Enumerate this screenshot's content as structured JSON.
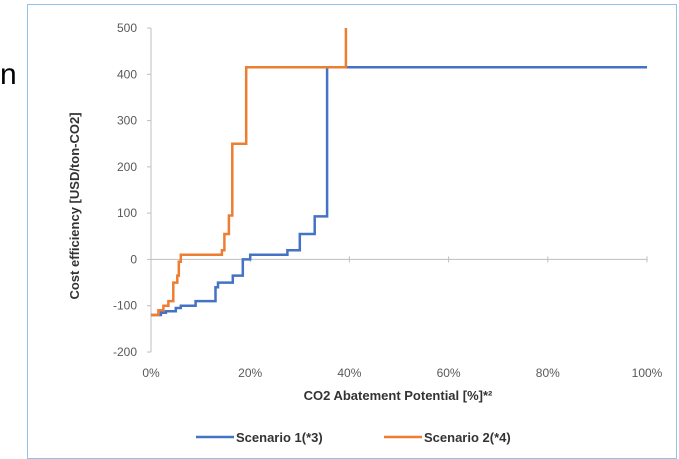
{
  "page": {
    "edge_text": "n"
  },
  "chart_data": {
    "type": "line",
    "xlabel": "CO2 Abatement Potential [%]*²",
    "ylabel": "Cost efficiency [USD/ton-CO2]",
    "xlim": [
      0,
      100
    ],
    "ylim": [
      -200,
      500
    ],
    "x_ticks": [
      0,
      20,
      40,
      60,
      80,
      100
    ],
    "x_tick_labels": [
      "0%",
      "20%",
      "40%",
      "60%",
      "80%",
      "100%"
    ],
    "y_ticks": [
      -200,
      -100,
      0,
      100,
      200,
      300,
      400,
      500
    ],
    "y_tick_labels": [
      "-200",
      "-100",
      "0",
      "100",
      "200",
      "300",
      "400",
      "500"
    ],
    "legend_position": "bottom",
    "series": [
      {
        "name": "Scenario 1(*3)",
        "color": "#4472c4",
        "step": true,
        "x": [
          0,
          2,
          3,
          5,
          6,
          9,
          13,
          13.5,
          15,
          16.5,
          18.5,
          20,
          27.5,
          30,
          33,
          35.5,
          100
        ],
        "y": [
          -120,
          -115,
          -112,
          -105,
          -100,
          -90,
          -60,
          -50,
          -50,
          -35,
          0,
          10,
          20,
          55,
          93,
          415,
          415
        ]
      },
      {
        "name": "Scenario 2(*4)",
        "color": "#ed7d31",
        "step": true,
        "x": [
          0,
          1.5,
          2.5,
          3.5,
          4.5,
          5.3,
          5.6,
          6,
          14.3,
          14.8,
          15.7,
          16.4,
          17.6,
          19.2,
          39,
          39.3
        ],
        "y": [
          -120,
          -110,
          -100,
          -90,
          -50,
          -35,
          -5,
          10,
          20,
          55,
          95,
          250,
          250,
          415,
          415,
          500
        ]
      }
    ]
  }
}
